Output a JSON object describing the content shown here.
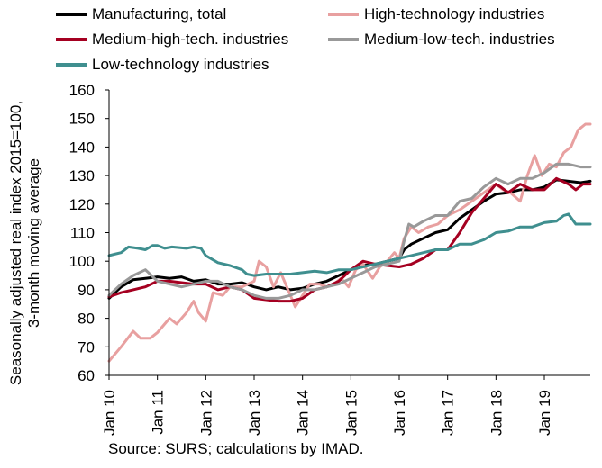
{
  "chart_data": {
    "type": "line",
    "ylabel_lines": [
      "Seasonally adjusted real index 2015=100,",
      "3-month moving average"
    ],
    "ylim": [
      60,
      160
    ],
    "yticks": [
      60,
      70,
      80,
      90,
      100,
      110,
      120,
      130,
      140,
      150,
      160
    ],
    "x_start_year": 2010,
    "x_end_year": 2019.95,
    "x_tick_labels": [
      "Jan 10",
      "Jan 11",
      "Jan 12",
      "Jan 13",
      "Jan 14",
      "Jan 15",
      "Jan 16",
      "Jan 17",
      "Jan 18",
      "Jan 19"
    ],
    "grid": false,
    "legend_position": "top",
    "source": "Source: SURS; calculations by IMAD.",
    "series": [
      {
        "name": "Manufacturing, total",
        "color": "#000000",
        "points": [
          [
            2010.0,
            87
          ],
          [
            2010.25,
            91
          ],
          [
            2010.5,
            93.5
          ],
          [
            2010.75,
            94
          ],
          [
            2011.0,
            94.5
          ],
          [
            2011.25,
            94
          ],
          [
            2011.5,
            94.5
          ],
          [
            2011.75,
            93
          ],
          [
            2012.0,
            93.5
          ],
          [
            2012.25,
            92
          ],
          [
            2012.5,
            92
          ],
          [
            2012.75,
            92.5
          ],
          [
            2013.0,
            91
          ],
          [
            2013.25,
            90
          ],
          [
            2013.5,
            91
          ],
          [
            2013.75,
            90
          ],
          [
            2014.0,
            90.5
          ],
          [
            2014.25,
            92
          ],
          [
            2014.5,
            93
          ],
          [
            2014.75,
            95
          ],
          [
            2015.0,
            97
          ],
          [
            2015.25,
            98.5
          ],
          [
            2015.5,
            99
          ],
          [
            2015.75,
            100
          ],
          [
            2016.0,
            101
          ],
          [
            2016.1,
            104
          ],
          [
            2016.25,
            106
          ],
          [
            2016.5,
            108
          ],
          [
            2016.75,
            110
          ],
          [
            2017.0,
            111
          ],
          [
            2017.25,
            115
          ],
          [
            2017.5,
            118
          ],
          [
            2017.75,
            121
          ],
          [
            2018.0,
            123.5
          ],
          [
            2018.25,
            124
          ],
          [
            2018.5,
            125
          ],
          [
            2018.75,
            125
          ],
          [
            2019.0,
            126
          ],
          [
            2019.25,
            128.5
          ],
          [
            2019.5,
            128
          ],
          [
            2019.75,
            127.5
          ],
          [
            2019.95,
            128
          ]
        ]
      },
      {
        "name": "High-technology industries",
        "color": "#E8A0A0",
        "points": [
          [
            2010.0,
            65
          ],
          [
            2010.25,
            70
          ],
          [
            2010.5,
            75.5
          ],
          [
            2010.65,
            73
          ],
          [
            2010.85,
            73
          ],
          [
            2011.0,
            75
          ],
          [
            2011.25,
            80
          ],
          [
            2011.4,
            78
          ],
          [
            2011.6,
            82
          ],
          [
            2011.75,
            86
          ],
          [
            2011.85,
            82
          ],
          [
            2012.0,
            79
          ],
          [
            2012.15,
            89
          ],
          [
            2012.35,
            88
          ],
          [
            2012.5,
            91
          ],
          [
            2012.75,
            91
          ],
          [
            2013.0,
            93
          ],
          [
            2013.1,
            100
          ],
          [
            2013.25,
            98
          ],
          [
            2013.4,
            91
          ],
          [
            2013.55,
            96
          ],
          [
            2013.75,
            88
          ],
          [
            2013.85,
            84
          ],
          [
            2014.0,
            88
          ],
          [
            2014.15,
            92
          ],
          [
            2014.35,
            92
          ],
          [
            2014.5,
            91
          ],
          [
            2014.65,
            92
          ],
          [
            2014.8,
            94
          ],
          [
            2014.95,
            91
          ],
          [
            2015.1,
            97
          ],
          [
            2015.25,
            99
          ],
          [
            2015.45,
            94
          ],
          [
            2015.6,
            98
          ],
          [
            2015.75,
            100
          ],
          [
            2015.9,
            103
          ],
          [
            2016.0,
            101
          ],
          [
            2016.1,
            108
          ],
          [
            2016.25,
            112
          ],
          [
            2016.4,
            110
          ],
          [
            2016.6,
            112
          ],
          [
            2016.8,
            113
          ],
          [
            2017.0,
            116
          ],
          [
            2017.25,
            118
          ],
          [
            2017.5,
            121
          ],
          [
            2017.75,
            124
          ],
          [
            2018.0,
            127
          ],
          [
            2018.15,
            125
          ],
          [
            2018.3,
            124
          ],
          [
            2018.5,
            121
          ],
          [
            2018.65,
            130
          ],
          [
            2018.8,
            137
          ],
          [
            2018.95,
            130
          ],
          [
            2019.1,
            134
          ],
          [
            2019.25,
            133
          ],
          [
            2019.4,
            138
          ],
          [
            2019.55,
            140
          ],
          [
            2019.7,
            146
          ],
          [
            2019.85,
            148
          ],
          [
            2019.95,
            148
          ]
        ]
      },
      {
        "name": "Medium-high-tech. industries",
        "color": "#A50021",
        "points": [
          [
            2010.0,
            87.5
          ],
          [
            2010.25,
            89
          ],
          [
            2010.5,
            90
          ],
          [
            2010.75,
            91
          ],
          [
            2011.0,
            93
          ],
          [
            2011.25,
            93
          ],
          [
            2011.5,
            92.5
          ],
          [
            2011.75,
            92
          ],
          [
            2012.0,
            92
          ],
          [
            2012.25,
            90
          ],
          [
            2012.5,
            91
          ],
          [
            2012.75,
            90
          ],
          [
            2013.0,
            87
          ],
          [
            2013.25,
            86.5
          ],
          [
            2013.5,
            86
          ],
          [
            2013.75,
            86
          ],
          [
            2014.0,
            87
          ],
          [
            2014.25,
            90
          ],
          [
            2014.5,
            91
          ],
          [
            2014.75,
            93
          ],
          [
            2015.0,
            97
          ],
          [
            2015.25,
            100
          ],
          [
            2015.5,
            99
          ],
          [
            2015.75,
            98.5
          ],
          [
            2016.0,
            98
          ],
          [
            2016.25,
            99
          ],
          [
            2016.5,
            101
          ],
          [
            2016.75,
            104
          ],
          [
            2017.0,
            104
          ],
          [
            2017.25,
            110
          ],
          [
            2017.5,
            117
          ],
          [
            2017.75,
            122
          ],
          [
            2018.0,
            127
          ],
          [
            2018.1,
            126
          ],
          [
            2018.25,
            124
          ],
          [
            2018.5,
            127
          ],
          [
            2018.75,
            125
          ],
          [
            2019.0,
            125
          ],
          [
            2019.25,
            129
          ],
          [
            2019.5,
            127
          ],
          [
            2019.65,
            125
          ],
          [
            2019.8,
            127
          ],
          [
            2019.95,
            127
          ]
        ]
      },
      {
        "name": "Medium-low-tech. industries",
        "color": "#999999",
        "points": [
          [
            2010.0,
            88
          ],
          [
            2010.25,
            92
          ],
          [
            2010.5,
            95
          ],
          [
            2010.75,
            97
          ],
          [
            2011.0,
            93
          ],
          [
            2011.25,
            92
          ],
          [
            2011.5,
            91
          ],
          [
            2011.75,
            92
          ],
          [
            2012.0,
            93
          ],
          [
            2012.25,
            93
          ],
          [
            2012.5,
            91
          ],
          [
            2012.75,
            90
          ],
          [
            2013.0,
            88
          ],
          [
            2013.25,
            87
          ],
          [
            2013.5,
            87
          ],
          [
            2013.75,
            88
          ],
          [
            2014.0,
            90
          ],
          [
            2014.25,
            90
          ],
          [
            2014.5,
            91
          ],
          [
            2014.75,
            92
          ],
          [
            2015.0,
            94
          ],
          [
            2015.25,
            96
          ],
          [
            2015.5,
            98
          ],
          [
            2015.75,
            99
          ],
          [
            2016.0,
            100
          ],
          [
            2016.1,
            107
          ],
          [
            2016.2,
            113
          ],
          [
            2016.3,
            112
          ],
          [
            2016.5,
            114
          ],
          [
            2016.75,
            116
          ],
          [
            2017.0,
            116
          ],
          [
            2017.25,
            121
          ],
          [
            2017.5,
            122
          ],
          [
            2017.75,
            126
          ],
          [
            2018.0,
            129
          ],
          [
            2018.25,
            127
          ],
          [
            2018.5,
            129
          ],
          [
            2018.75,
            129
          ],
          [
            2019.0,
            131
          ],
          [
            2019.25,
            134
          ],
          [
            2019.5,
            134
          ],
          [
            2019.75,
            133
          ],
          [
            2019.95,
            133
          ]
        ]
      },
      {
        "name": "Low-technology industries",
        "color": "#3F8F8F",
        "points": [
          [
            2010.0,
            102
          ],
          [
            2010.25,
            103
          ],
          [
            2010.4,
            105
          ],
          [
            2010.6,
            104.5
          ],
          [
            2010.75,
            104
          ],
          [
            2010.9,
            105.5
          ],
          [
            2011.0,
            105.5
          ],
          [
            2011.15,
            104.5
          ],
          [
            2011.3,
            105
          ],
          [
            2011.6,
            104.5
          ],
          [
            2011.75,
            105
          ],
          [
            2011.9,
            104.5
          ],
          [
            2012.0,
            102
          ],
          [
            2012.25,
            99.5
          ],
          [
            2012.5,
            98.5
          ],
          [
            2012.75,
            97
          ],
          [
            2012.85,
            95.5
          ],
          [
            2013.0,
            95
          ],
          [
            2013.25,
            95.5
          ],
          [
            2013.5,
            95.5
          ],
          [
            2013.75,
            95.5
          ],
          [
            2014.0,
            96
          ],
          [
            2014.25,
            96.5
          ],
          [
            2014.5,
            96
          ],
          [
            2014.75,
            97
          ],
          [
            2015.0,
            97
          ],
          [
            2015.25,
            98
          ],
          [
            2015.5,
            99
          ],
          [
            2015.75,
            100
          ],
          [
            2016.0,
            101
          ],
          [
            2016.25,
            102
          ],
          [
            2016.5,
            103
          ],
          [
            2016.75,
            104
          ],
          [
            2017.0,
            104
          ],
          [
            2017.25,
            106
          ],
          [
            2017.5,
            106
          ],
          [
            2017.75,
            107.5
          ],
          [
            2018.0,
            110
          ],
          [
            2018.25,
            110.5
          ],
          [
            2018.5,
            112
          ],
          [
            2018.75,
            112
          ],
          [
            2019.0,
            113.5
          ],
          [
            2019.25,
            114
          ],
          [
            2019.4,
            116
          ],
          [
            2019.5,
            116.5
          ],
          [
            2019.65,
            113
          ],
          [
            2019.8,
            113
          ],
          [
            2019.95,
            113
          ]
        ]
      }
    ]
  }
}
